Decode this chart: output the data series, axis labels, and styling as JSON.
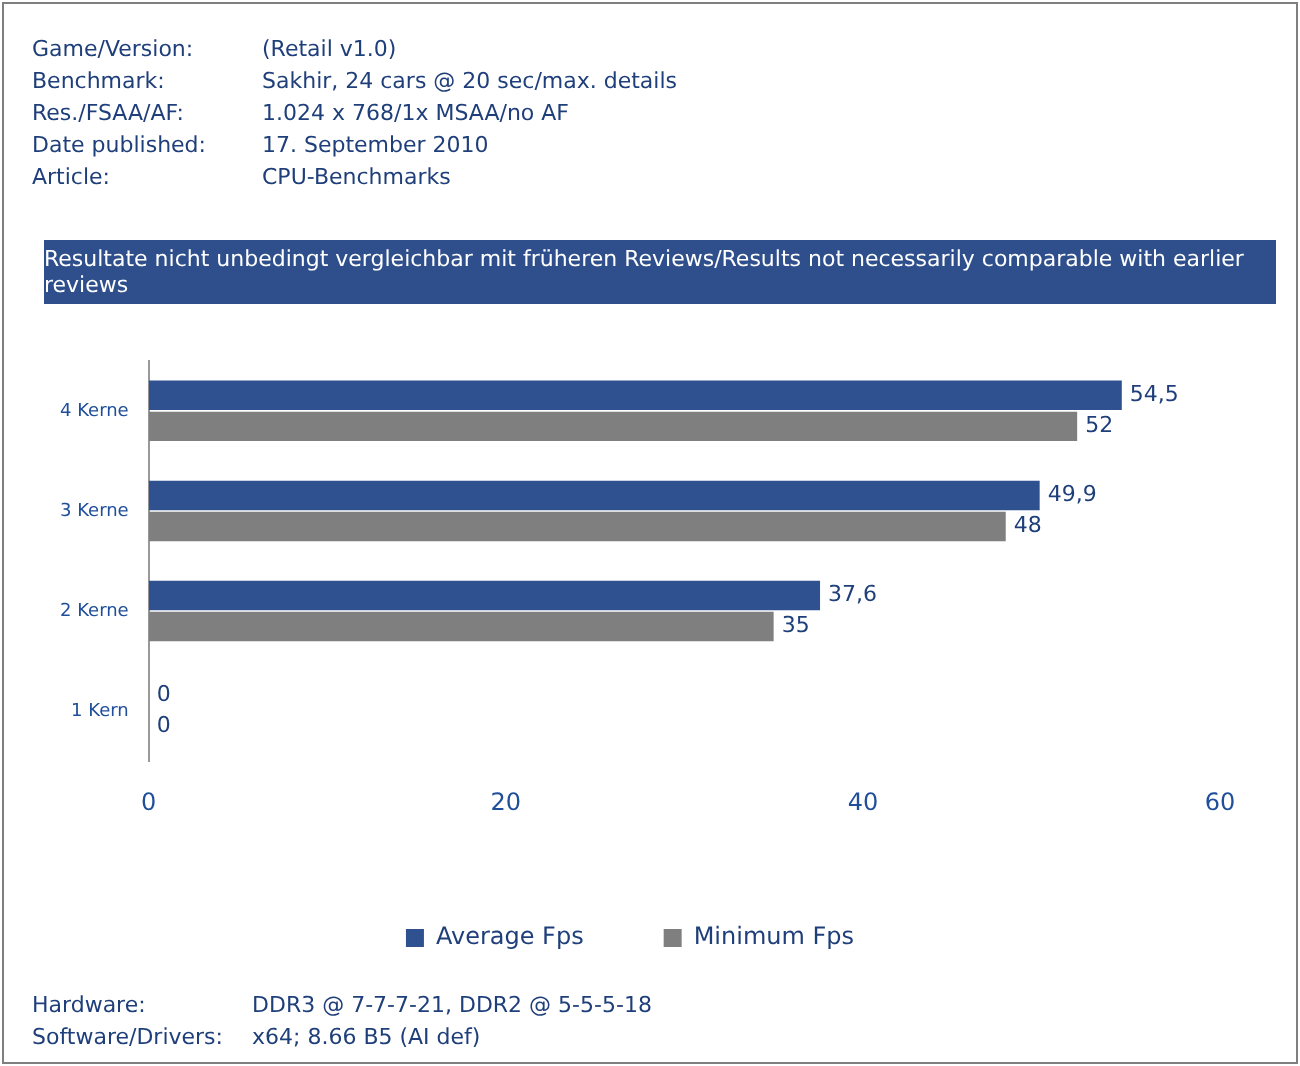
{
  "chart_data": {
    "type": "bar",
    "orientation": "horizontal",
    "categories": [
      "4 Kerne",
      "3 Kerne",
      "2 Kerne",
      "1 Kern"
    ],
    "series": [
      {
        "name": "Average Fps",
        "color": "#2f5190",
        "values": [
          54.5,
          49.9,
          37.6,
          0
        ],
        "value_labels": [
          "54,5",
          "49,9",
          "37,6",
          "0"
        ]
      },
      {
        "name": "Minimum Fps",
        "color": "#7f7f7f",
        "values": [
          52,
          48,
          35,
          0
        ],
        "value_labels": [
          "52",
          "48",
          "35",
          "0"
        ]
      }
    ],
    "xlim": [
      0,
      60
    ],
    "xticks": [
      0,
      20,
      40,
      60
    ],
    "grid": false,
    "legend": "bottom",
    "annotations": [
      "Game/Version:",
      "(Retail v1.0)",
      "Benchmark:",
      "Sakhir, 24 cars @ 20 sec/max. details",
      "Res./FSAA/AF:",
      "1.024 x 768/1x MSAA/no AF",
      "Date published:",
      "17. September 2010",
      "Article:",
      "CPU-Benchmarks",
      "Resultate nicht unbedingt  vergleichbar mit früheren Reviews/Results not necessarily comparable with earlier reviews",
      "Hardware:",
      "DDR3 @ 7-7-7-21, DDR2 @ 5-5-5-18",
      "Software/Drivers:",
      "x64; 8.66 B5 (AI def)"
    ]
  }
}
